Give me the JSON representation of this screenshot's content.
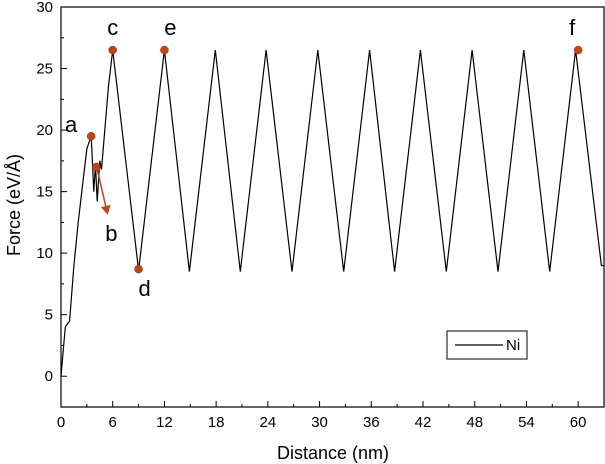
{
  "chart_data": {
    "type": "line",
    "title": "",
    "xlabel": "Distance (nm)",
    "ylabel": "Force (eV/Å)",
    "xlim": [
      0,
      63
    ],
    "ylim": [
      -2.5,
      30
    ],
    "xticks": [
      0,
      6,
      12,
      18,
      24,
      30,
      36,
      42,
      48,
      54,
      60
    ],
    "yticks": [
      0,
      5,
      10,
      15,
      20,
      25,
      30
    ],
    "grid": false,
    "legend": {
      "position": "bottom-right",
      "entries": [
        "Ni"
      ]
    },
    "series": [
      {
        "name": "Ni",
        "color": "#000000",
        "x": [
          0,
          0.5,
          1.0,
          1.5,
          2.0,
          2.5,
          3.0,
          3.5,
          3.8,
          4.0,
          4.2,
          4.5,
          4.7,
          5.5,
          6.0,
          9.0,
          12.0,
          14.9,
          17.9,
          20.8,
          23.8,
          26.8,
          29.8,
          32.8,
          35.8,
          38.7,
          41.7,
          44.7,
          47.7,
          50.7,
          53.7,
          56.7,
          59.7,
          62.7,
          63.0
        ],
        "y": [
          0,
          4.0,
          4.5,
          9.0,
          12.5,
          15.5,
          18.5,
          19.5,
          15.0,
          17.2,
          14.2,
          17.5,
          16.8,
          23.5,
          26.5,
          8.6,
          26.5,
          8.5,
          26.5,
          8.5,
          26.5,
          8.5,
          26.5,
          8.5,
          26.5,
          8.5,
          26.5,
          8.5,
          26.5,
          8.5,
          26.5,
          8.5,
          26.5,
          9.0,
          9.0
        ]
      }
    ],
    "markers": [
      {
        "label": "a",
        "x": 3.5,
        "y": 19.5,
        "color": "#c0441a"
      },
      {
        "label": "b",
        "x": 4.1,
        "y": 17.0,
        "color": "#c0441a"
      },
      {
        "label": "c",
        "x": 6.0,
        "y": 26.5,
        "color": "#c0441a"
      },
      {
        "label": "d",
        "x": 9.0,
        "y": 8.7,
        "color": "#c0441a"
      },
      {
        "label": "e",
        "x": 12.0,
        "y": 26.5,
        "color": "#c0441a"
      },
      {
        "label": "f",
        "x": 60.0,
        "y": 26.5,
        "color": "#c0441a"
      }
    ],
    "annotations": [
      {
        "type": "arrow",
        "from_label": "b",
        "x1": 4.2,
        "y1": 16.8,
        "x2": 5.4,
        "y2": 13.2,
        "color": "#c0441a"
      }
    ]
  }
}
